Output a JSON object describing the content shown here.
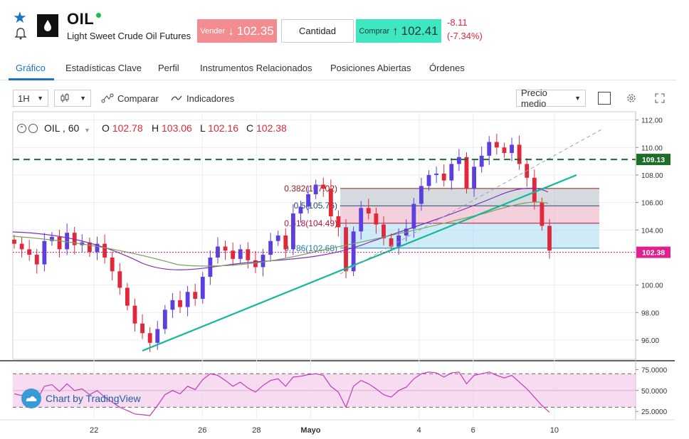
{
  "header": {
    "symbol": "OIL",
    "name": "Light Sweet Crude Oil Futures",
    "sell_label": "Vender",
    "sell_arrow": "↓",
    "sell_price": "102.35",
    "quantity_label": "Cantidad",
    "buy_label": "Comprar",
    "buy_arrow": "↑",
    "buy_price": "102.41",
    "change": "-8.11",
    "change_pct": "(-7.34%)",
    "icons": [
      "star-icon",
      "bell-icon",
      "oil-drop-icon"
    ]
  },
  "tabs": [
    {
      "label": "Gráfico",
      "active": true
    },
    {
      "label": "Estadísticas Clave",
      "active": false
    },
    {
      "label": "Perfil",
      "active": false
    },
    {
      "label": "Instrumentos Relacionados",
      "active": false
    },
    {
      "label": "Posiciones Abiertas",
      "active": false
    },
    {
      "label": "Órdenes",
      "active": false
    }
  ],
  "toolbar": {
    "timeframe": "1H",
    "compare_label": "Comparar",
    "indicators_label": "Indicadores",
    "price_type": "Precio medio"
  },
  "legend": {
    "series": "OIL , 60",
    "o_label": "O",
    "o": "102.78",
    "h_label": "H",
    "h": "103.06",
    "l_label": "L",
    "l": "102.16",
    "c_label": "C",
    "c": "102.38"
  },
  "watermark": "Chart by TradingView",
  "colors": {
    "up": "#5b3fe0",
    "down": "#e0283a",
    "accent": "#1a73c9",
    "trendline": "#12b89a",
    "dashed_level": "#1c6e2a"
  },
  "chart_data": {
    "type": "candlestick",
    "price_axis_ticks": [
      "112.00",
      "110.00",
      "108.00",
      "106.00",
      "104.00",
      "100.00",
      "98.00",
      "96.00"
    ],
    "price_axis_tick_values": [
      112,
      110,
      108,
      106,
      104,
      100,
      98,
      96
    ],
    "ylim": [
      94.6,
      112.6
    ],
    "x_ticks": [
      "22",
      "26",
      "28",
      "Mayo",
      "4",
      "6",
      "10"
    ],
    "x_tick_positions": [
      3,
      7,
      9,
      11,
      15,
      17,
      20
    ],
    "xlim": [
      0,
      23
    ],
    "last_price": "102.38",
    "horizontal_level": "109.13",
    "fib_levels": [
      {
        "label": "0.382(107.02)",
        "value": 107.02
      },
      {
        "label": "0.5(105.76)",
        "value": 105.76
      },
      {
        "label": "0.618(104.49)",
        "value": 104.49
      },
      {
        "label": "0.786(102.68)",
        "value": 102.68
      }
    ],
    "approx_closes": [
      103.0,
      102.6,
      102.2,
      101.5,
      103.2,
      103.5,
      102.6,
      103.8,
      102.9,
      103.1,
      102.4,
      103.0,
      102.0,
      101.0,
      99.8,
      98.5,
      97.2,
      96.5,
      95.8,
      96.8,
      98.2,
      98.9,
      98.4,
      99.5,
      99.0,
      100.6,
      102.0,
      102.8,
      102.5,
      101.9,
      102.6,
      101.8,
      101.3,
      102.2,
      103.2,
      103.6,
      102.6,
      105.2,
      105.7,
      106.6,
      107.3,
      107.0,
      105.0,
      104.2,
      101.0,
      103.9,
      105.6,
      105.2,
      104.4,
      103.4,
      102.8,
      103.6,
      104.1,
      105.9,
      107.2,
      108.0,
      108.1,
      107.6,
      108.8,
      109.3,
      107.0,
      108.6,
      109.4,
      110.4,
      110.0,
      109.6,
      110.2,
      108.8,
      107.8,
      106.0,
      104.3,
      102.5
    ],
    "rsi": {
      "ticks": [
        "75.0000",
        "50.0000",
        "25.0000"
      ],
      "tick_values": [
        75,
        50,
        25
      ],
      "ylim": [
        15,
        83
      ],
      "upper": 70,
      "lower": 30,
      "values": [
        46,
        44,
        42,
        38,
        55,
        57,
        49,
        58,
        50,
        52,
        45,
        50,
        42,
        36,
        30,
        26,
        22,
        21,
        20,
        32,
        45,
        50,
        46,
        55,
        51,
        63,
        70,
        68,
        62,
        55,
        60,
        53,
        48,
        56,
        62,
        64,
        55,
        66,
        67,
        69,
        70,
        68,
        55,
        48,
        30,
        55,
        62,
        58,
        52,
        45,
        42,
        50,
        54,
        64,
        70,
        72,
        71,
        66,
        71,
        72,
        58,
        68,
        70,
        72,
        68,
        65,
        68,
        60,
        52,
        42,
        32,
        24
      ]
    }
  }
}
